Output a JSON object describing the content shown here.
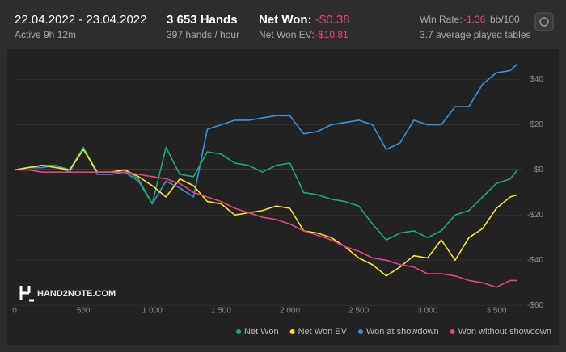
{
  "header": {
    "dates": "22.04.2022 - 23.04.2022",
    "active": "Active 9h 12m",
    "hands": "3 653 Hands",
    "hands_per_hour": "397 hands / hour",
    "net_won_label": "Net Won:",
    "net_won": "-$0.38",
    "net_won_ev_label": "Net Won  EV:",
    "net_won_ev": "-$10.81",
    "win_rate_label": "Win Rate:",
    "win_rate": "-1.36",
    "win_rate_unit": "bb/100",
    "tables": "3.7 average played tables",
    "logo": "HAND2NOTE.COM"
  },
  "chart_data": {
    "type": "line",
    "x": [
      0,
      100,
      200,
      300,
      400,
      500,
      600,
      700,
      800,
      900,
      1000,
      1100,
      1200,
      1300,
      1400,
      1500,
      1600,
      1700,
      1800,
      1900,
      2000,
      2100,
      2200,
      2300,
      2400,
      2500,
      2600,
      2700,
      2800,
      2900,
      3000,
      3100,
      3200,
      3300,
      3400,
      3500,
      3600,
      3653
    ],
    "series": [
      {
        "name": "Won at showdown",
        "color": "#3d8fd8",
        "values": [
          0,
          1,
          1,
          2,
          -1,
          10,
          -2,
          -2,
          -1,
          -5,
          -15,
          -5,
          -8,
          -12,
          18,
          20,
          22,
          22,
          23,
          24,
          24,
          16,
          17,
          20,
          21,
          22,
          20,
          9,
          12,
          22,
          20,
          20,
          28,
          28,
          38,
          43,
          44,
          47
        ]
      },
      {
        "name": "Net Won",
        "color": "#1faa6b",
        "values": [
          0,
          1,
          2,
          2,
          0,
          10,
          -1,
          -1,
          0,
          -4,
          -15,
          10,
          -2,
          -3,
          8,
          7,
          3,
          2,
          -1,
          2,
          3,
          -10,
          -11,
          -13,
          -14,
          -16,
          -24,
          -31,
          -28,
          -27,
          -30,
          -27,
          -20,
          -18,
          -12,
          -6,
          -4,
          0
        ]
      },
      {
        "name": "Net Won  EV",
        "color": "#f2e52c",
        "values": [
          0,
          1,
          2,
          1,
          0,
          9,
          -1,
          -1,
          0,
          -3,
          -7,
          -12,
          -4,
          -7,
          -14,
          -15,
          -20,
          -19,
          -18,
          -16,
          -17,
          -27,
          -28,
          -30,
          -34,
          -39,
          -42,
          -47,
          -43,
          -38,
          -39,
          -31,
          -40,
          -30,
          -26,
          -17,
          -12,
          -11
        ]
      },
      {
        "name": "Won without showdown",
        "color": "#df467c",
        "values": [
          0,
          0,
          -1,
          -1,
          -1,
          -1,
          -1,
          -1,
          -1,
          -2,
          -3,
          -4,
          -6,
          -10,
          -12,
          -14,
          -17,
          -19,
          -21,
          -22,
          -24,
          -27,
          -29,
          -31,
          -34,
          -36,
          -39,
          -40,
          -42,
          -43,
          -46,
          -46,
          -47,
          -49,
          -50,
          -52,
          -49,
          -49
        ]
      }
    ],
    "legend_order": [
      1,
      2,
      0,
      3
    ],
    "xlim": [
      0,
      3653
    ],
    "xticks": [
      0,
      500,
      {
        "value": 1000,
        "label": "1 000"
      },
      {
        "value": 1500,
        "label": "1 500"
      },
      {
        "value": 2000,
        "label": "2 000"
      },
      {
        "value": 2500,
        "label": "2 500"
      },
      {
        "value": 3000,
        "label": "3 000"
      },
      {
        "value": 3500,
        "label": "3 500"
      }
    ],
    "ylim": [
      -61,
      52
    ],
    "yticks": [
      {
        "value": 40,
        "label": "$40"
      },
      {
        "value": 20,
        "label": "$20"
      },
      {
        "value": 0,
        "label": "$0"
      },
      {
        "value": -20,
        "label": "-$20"
      },
      {
        "value": -40,
        "label": "-$40"
      },
      {
        "value": -60,
        "label": "-$60"
      }
    ],
    "grid": true,
    "legend": "bottom-right"
  }
}
